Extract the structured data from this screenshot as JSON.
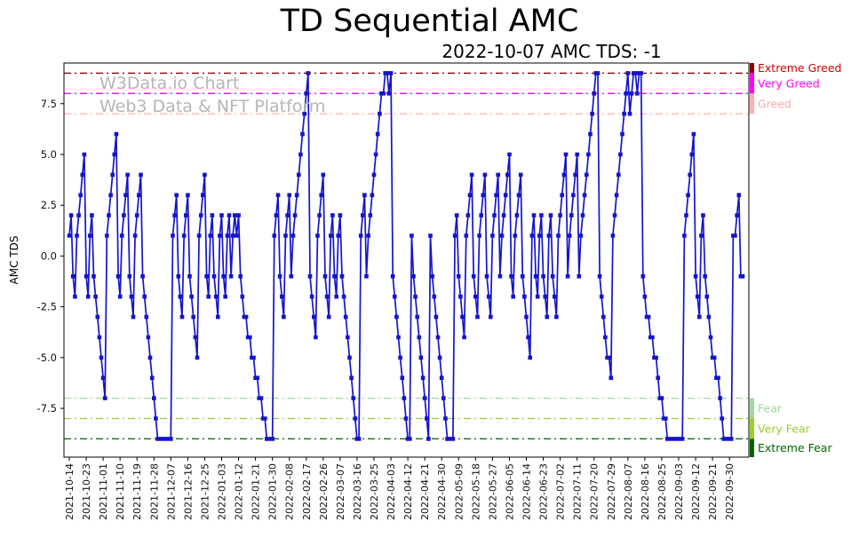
{
  "title": "TD Sequential AMC",
  "subtitle": "2022-10-07 AMC TDS: -1",
  "watermark": {
    "line1": "W3Data.io Chart",
    "line2": "Web3 Data & NFT Platform"
  },
  "chart_data": {
    "type": "line",
    "title": "TD Sequential AMC",
    "subtitle": "2022-10-07 AMC TDS: -1",
    "xlabel": "",
    "ylabel": "AMC TDS",
    "ylim": [
      -9.9,
      9.5
    ],
    "yticks": [
      7.5,
      5.0,
      2.5,
      0.0,
      -2.5,
      -5.0,
      -7.5
    ],
    "grid": false,
    "marker": "square",
    "line_color": "#1414cd",
    "x_tick_interval": 9,
    "x_tick_labels": [
      "2021-10-14",
      "2021-10-23",
      "2021-11-01",
      "2021-11-10",
      "2021-11-19",
      "2021-11-28",
      "2021-12-07",
      "2021-12-16",
      "2021-12-25",
      "2022-01-03",
      "2022-01-12",
      "2022-01-21",
      "2022-01-30",
      "2022-02-08",
      "2022-02-17",
      "2022-02-26",
      "2022-03-07",
      "2022-03-16",
      "2022-03-25",
      "2022-04-03",
      "2022-04-12",
      "2022-04-21",
      "2022-04-30",
      "2022-05-09",
      "2022-05-18",
      "2022-05-27",
      "2022-06-05",
      "2022-06-14",
      "2022-06-23",
      "2022-07-02",
      "2022-07-11",
      "2022-07-20",
      "2022-07-29",
      "2022-08-07",
      "2022-08-16",
      "2022-08-25",
      "2022-09-03",
      "2022-09-12",
      "2022-09-21",
      "2022-09-30"
    ],
    "values": [
      1,
      2,
      -1,
      -2,
      1,
      2,
      3,
      4,
      5,
      -1,
      -2,
      1,
      2,
      -1,
      -2,
      -3,
      -4,
      -5,
      -6,
      -7,
      1,
      2,
      3,
      4,
      5,
      6,
      -1,
      -2,
      1,
      2,
      3,
      4,
      -1,
      -2,
      -3,
      1,
      2,
      3,
      4,
      -1,
      -2,
      -3,
      -4,
      -5,
      -6,
      -7,
      -8,
      -9,
      -9,
      -9,
      -9,
      -9,
      -9,
      -9,
      -9,
      1,
      2,
      3,
      -1,
      -2,
      -3,
      1,
      2,
      3,
      -1,
      -2,
      -3,
      -4,
      -5,
      1,
      2,
      3,
      4,
      -1,
      -2,
      1,
      2,
      -1,
      -2,
      -3,
      1,
      2,
      -1,
      -2,
      1,
      2,
      -1,
      1,
      2,
      1,
      2,
      -1,
      -2,
      -3,
      -3,
      -4,
      -4,
      -5,
      -5,
      -6,
      -6,
      -7,
      -7,
      -8,
      -8,
      -9,
      -9,
      -9,
      -9,
      1,
      2,
      3,
      -1,
      -2,
      -3,
      1,
      2,
      3,
      -1,
      1,
      2,
      3,
      4,
      5,
      6,
      7,
      8,
      9,
      -1,
      -2,
      -3,
      -4,
      1,
      2,
      3,
      4,
      -1,
      -2,
      -3,
      1,
      2,
      -1,
      -2,
      1,
      2,
      -1,
      -2,
      -3,
      -4,
      -5,
      -6,
      -7,
      -8,
      -9,
      -9,
      1,
      2,
      3,
      -1,
      1,
      2,
      3,
      4,
      5,
      6,
      7,
      8,
      8,
      9,
      9,
      8,
      9,
      -1,
      -2,
      -3,
      -4,
      -5,
      -6,
      -7,
      -8,
      -9,
      -9,
      1,
      -1,
      -2,
      -3,
      -4,
      -5,
      -6,
      -7,
      -8,
      -9,
      1,
      -1,
      -2,
      -3,
      -4,
      -5,
      -6,
      -7,
      -8,
      -9,
      -9,
      -9,
      -9,
      1,
      2,
      -1,
      -2,
      -3,
      -4,
      1,
      2,
      3,
      4,
      -1,
      -2,
      -3,
      1,
      2,
      3,
      4,
      -1,
      -2,
      -3,
      1,
      2,
      3,
      4,
      -1,
      1,
      2,
      3,
      4,
      5,
      -1,
      -2,
      1,
      2,
      3,
      4,
      -1,
      -2,
      -3,
      -4,
      -5,
      1,
      2,
      -1,
      -2,
      1,
      2,
      -1,
      -2,
      -3,
      1,
      2,
      -1,
      -2,
      -3,
      1,
      2,
      3,
      4,
      5,
      -1,
      1,
      2,
      3,
      4,
      5,
      -1,
      1,
      2,
      3,
      4,
      5,
      6,
      7,
      8,
      9,
      9,
      -1,
      -2,
      -3,
      -4,
      -5,
      -5,
      -6,
      1,
      2,
      3,
      4,
      5,
      6,
      7,
      8,
      9,
      7,
      8,
      9,
      9,
      8,
      9,
      9,
      -1,
      -2,
      -3,
      -3,
      -4,
      -4,
      -5,
      -5,
      -6,
      -7,
      -7,
      -8,
      -8,
      -9,
      -9,
      -9,
      -9,
      -9,
      -9,
      -9,
      -9,
      -9,
      1,
      2,
      3,
      4,
      5,
      6,
      -1,
      -2,
      -3,
      1,
      2,
      -1,
      -2,
      -3,
      -4,
      -5,
      -5,
      -6,
      -6,
      -7,
      -8,
      -9,
      -9,
      -9,
      -9,
      -9,
      1,
      1,
      2,
      3,
      -1,
      -1
    ],
    "guides": [
      {
        "label": "Extreme Greed",
        "value": 9,
        "band": [
          9.5,
          9
        ],
        "line_color": "#8b0000",
        "label_color": "#d40000"
      },
      {
        "label": "Very Greed",
        "value": 8,
        "band": [
          9,
          8
        ],
        "line_color": "#ff00ff",
        "label_color": "#ff00ff"
      },
      {
        "label": "Greed",
        "value": 7,
        "band": [
          8,
          7
        ],
        "line_color": "#ffb0b0",
        "label_color": "#ffa8a8"
      },
      {
        "label": "Fear",
        "value": -7,
        "band": [
          -7,
          -8
        ],
        "line_color": "#9fd89f",
        "label_color": "#9fd89f"
      },
      {
        "label": "Very Fear",
        "value": -8,
        "band": [
          -8,
          -9
        ],
        "line_color": "#9acd32",
        "label_color": "#9acd32"
      },
      {
        "label": "Extreme Fear",
        "value": -9,
        "band": [
          -9,
          -9.9
        ],
        "line_color": "#006400",
        "label_color": "#006400"
      }
    ]
  }
}
